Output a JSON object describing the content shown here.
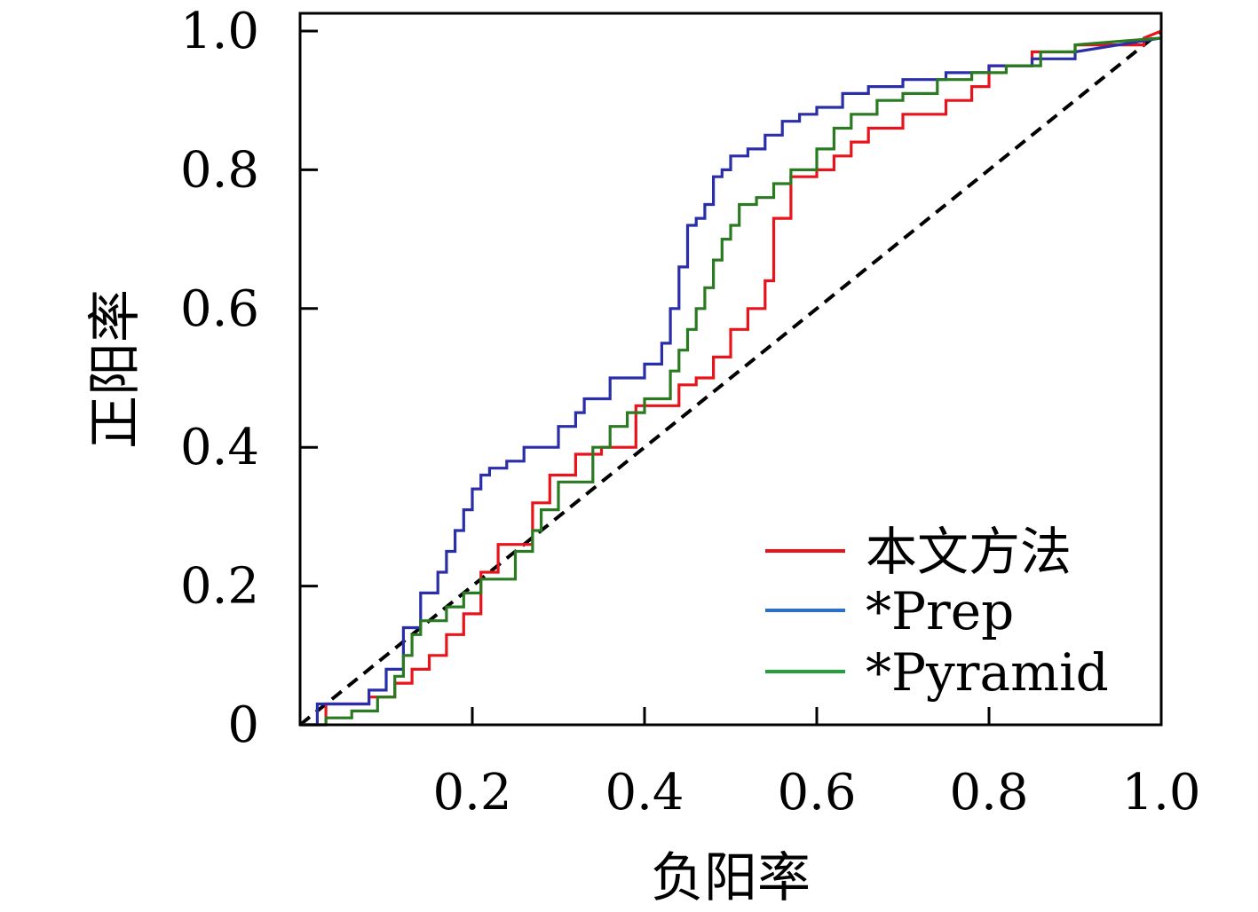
{
  "chart_data": {
    "type": "line",
    "title": "",
    "xlabel": "负阳率",
    "ylabel": "正阳率",
    "xlim": [
      0,
      1
    ],
    "ylim": [
      0,
      1
    ],
    "grid": false,
    "legend_position": "bottom-right",
    "x_ticks": [
      {
        "value": 0.2,
        "label": "0.2"
      },
      {
        "value": 0.4,
        "label": "0.4"
      },
      {
        "value": 0.6,
        "label": "0.6"
      },
      {
        "value": 0.8,
        "label": "0.8"
      },
      {
        "value": 1.0,
        "label": "1.0"
      }
    ],
    "y_ticks": [
      {
        "value": 0,
        "label": "0"
      },
      {
        "value": 0.2,
        "label": "0.2"
      },
      {
        "value": 0.4,
        "label": "0.4"
      },
      {
        "value": 0.6,
        "label": "0.6"
      },
      {
        "value": 0.8,
        "label": "0.8"
      },
      {
        "value": 1.0,
        "label": "1.0"
      }
    ],
    "reference_line": {
      "x": [
        0,
        1
      ],
      "y": [
        0,
        1
      ],
      "color": "#000000",
      "style": "dashed"
    },
    "series": [
      {
        "name": "本文方法",
        "color": "#e8141c",
        "legend_color": "#e8141c",
        "x": [
          0,
          0.03,
          0.03,
          0.08,
          0.08,
          0.11,
          0.11,
          0.13,
          0.13,
          0.15,
          0.15,
          0.17,
          0.17,
          0.19,
          0.19,
          0.21,
          0.21,
          0.23,
          0.23,
          0.27,
          0.27,
          0.29,
          0.29,
          0.32,
          0.32,
          0.35,
          0.35,
          0.39,
          0.39,
          0.44,
          0.44,
          0.46,
          0.46,
          0.48,
          0.48,
          0.5,
          0.5,
          0.52,
          0.52,
          0.54,
          0.54,
          0.55,
          0.55,
          0.57,
          0.57,
          0.6,
          0.6,
          0.62,
          0.62,
          0.64,
          0.64,
          0.66,
          0.66,
          0.7,
          0.7,
          0.75,
          0.75,
          0.78,
          0.78,
          0.8,
          0.8,
          0.85,
          0.85,
          0.9,
          0.9,
          0.98,
          0.98,
          1.0
        ],
        "y": [
          0,
          0,
          0.03,
          0.03,
          0.04,
          0.04,
          0.06,
          0.06,
          0.08,
          0.08,
          0.1,
          0.1,
          0.13,
          0.13,
          0.16,
          0.16,
          0.22,
          0.22,
          0.26,
          0.26,
          0.32,
          0.32,
          0.36,
          0.36,
          0.39,
          0.39,
          0.4,
          0.4,
          0.46,
          0.46,
          0.49,
          0.49,
          0.5,
          0.5,
          0.53,
          0.53,
          0.57,
          0.57,
          0.6,
          0.6,
          0.64,
          0.64,
          0.73,
          0.73,
          0.79,
          0.79,
          0.8,
          0.8,
          0.82,
          0.82,
          0.84,
          0.84,
          0.86,
          0.86,
          0.88,
          0.88,
          0.9,
          0.9,
          0.92,
          0.92,
          0.95,
          0.95,
          0.97,
          0.97,
          0.98,
          0.98,
          0.99,
          1.0
        ]
      },
      {
        "name": "*Prep",
        "color": "#2a2ea8",
        "legend_color": "#2a6fc9",
        "x": [
          0,
          0.02,
          0.02,
          0.08,
          0.08,
          0.1,
          0.1,
          0.12,
          0.12,
          0.14,
          0.14,
          0.16,
          0.16,
          0.17,
          0.17,
          0.18,
          0.18,
          0.19,
          0.19,
          0.2,
          0.2,
          0.21,
          0.21,
          0.22,
          0.22,
          0.24,
          0.24,
          0.26,
          0.26,
          0.3,
          0.3,
          0.32,
          0.32,
          0.33,
          0.33,
          0.36,
          0.36,
          0.4,
          0.4,
          0.42,
          0.42,
          0.43,
          0.43,
          0.44,
          0.44,
          0.45,
          0.45,
          0.46,
          0.46,
          0.47,
          0.47,
          0.48,
          0.48,
          0.49,
          0.49,
          0.5,
          0.5,
          0.52,
          0.52,
          0.54,
          0.54,
          0.56,
          0.56,
          0.58,
          0.58,
          0.6,
          0.6,
          0.63,
          0.63,
          0.66,
          0.66,
          0.7,
          0.7,
          0.75,
          0.75,
          0.8,
          0.8,
          0.85,
          0.85,
          0.9,
          0.9,
          1.0
        ],
        "y": [
          0,
          0,
          0.03,
          0.03,
          0.05,
          0.05,
          0.08,
          0.08,
          0.14,
          0.14,
          0.19,
          0.19,
          0.22,
          0.22,
          0.25,
          0.25,
          0.28,
          0.28,
          0.31,
          0.31,
          0.34,
          0.34,
          0.36,
          0.36,
          0.37,
          0.37,
          0.38,
          0.38,
          0.4,
          0.4,
          0.43,
          0.43,
          0.45,
          0.45,
          0.47,
          0.47,
          0.5,
          0.5,
          0.52,
          0.52,
          0.55,
          0.55,
          0.6,
          0.6,
          0.66,
          0.66,
          0.72,
          0.72,
          0.73,
          0.73,
          0.75,
          0.75,
          0.79,
          0.79,
          0.8,
          0.8,
          0.82,
          0.82,
          0.83,
          0.83,
          0.85,
          0.85,
          0.87,
          0.87,
          0.88,
          0.88,
          0.89,
          0.89,
          0.91,
          0.91,
          0.92,
          0.92,
          0.93,
          0.93,
          0.94,
          0.94,
          0.95,
          0.95,
          0.96,
          0.96,
          0.97,
          0.99
        ]
      },
      {
        "name": "*Pyramid",
        "color": "#2a7a22",
        "legend_color": "#24a038",
        "x": [
          0,
          0.03,
          0.03,
          0.06,
          0.06,
          0.09,
          0.09,
          0.11,
          0.11,
          0.12,
          0.12,
          0.13,
          0.13,
          0.14,
          0.14,
          0.17,
          0.17,
          0.19,
          0.19,
          0.21,
          0.21,
          0.25,
          0.25,
          0.27,
          0.27,
          0.28,
          0.28,
          0.3,
          0.3,
          0.34,
          0.34,
          0.36,
          0.36,
          0.38,
          0.38,
          0.4,
          0.4,
          0.43,
          0.43,
          0.44,
          0.44,
          0.45,
          0.45,
          0.46,
          0.46,
          0.47,
          0.47,
          0.48,
          0.48,
          0.49,
          0.49,
          0.5,
          0.5,
          0.51,
          0.51,
          0.53,
          0.53,
          0.55,
          0.55,
          0.57,
          0.57,
          0.6,
          0.6,
          0.62,
          0.62,
          0.64,
          0.64,
          0.67,
          0.67,
          0.7,
          0.7,
          0.74,
          0.74,
          0.78,
          0.78,
          0.82,
          0.82,
          0.86,
          0.86,
          0.9,
          0.9,
          1.0
        ],
        "y": [
          0,
          0,
          0.01,
          0.01,
          0.02,
          0.02,
          0.04,
          0.04,
          0.07,
          0.07,
          0.1,
          0.1,
          0.13,
          0.13,
          0.15,
          0.15,
          0.17,
          0.17,
          0.19,
          0.19,
          0.21,
          0.21,
          0.25,
          0.25,
          0.28,
          0.28,
          0.31,
          0.31,
          0.35,
          0.35,
          0.4,
          0.4,
          0.43,
          0.43,
          0.45,
          0.45,
          0.47,
          0.47,
          0.51,
          0.51,
          0.54,
          0.54,
          0.57,
          0.57,
          0.6,
          0.6,
          0.63,
          0.63,
          0.67,
          0.67,
          0.7,
          0.7,
          0.72,
          0.72,
          0.75,
          0.75,
          0.76,
          0.76,
          0.78,
          0.78,
          0.8,
          0.8,
          0.83,
          0.83,
          0.86,
          0.86,
          0.88,
          0.88,
          0.9,
          0.9,
          0.91,
          0.91,
          0.93,
          0.93,
          0.94,
          0.94,
          0.95,
          0.95,
          0.97,
          0.97,
          0.98,
          0.99
        ]
      }
    ]
  }
}
